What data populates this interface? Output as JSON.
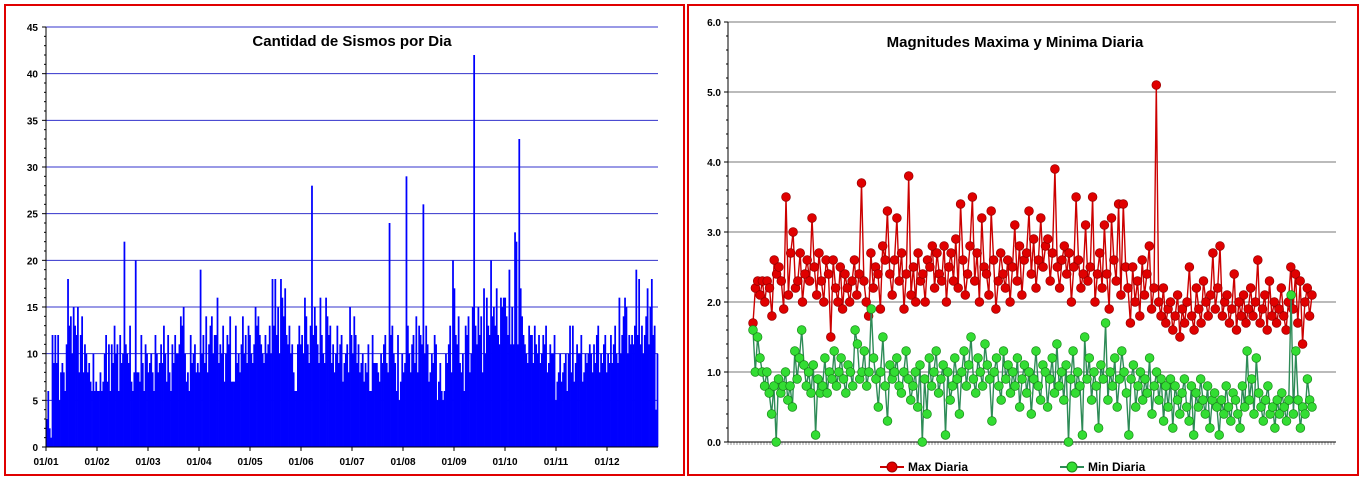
{
  "chart_data": [
    {
      "type": "bar",
      "title": "Cantidad de Sismos por Dia",
      "xlabel": "",
      "ylabel": "",
      "ylim": [
        0,
        45
      ],
      "yticks": [
        0,
        5,
        10,
        15,
        20,
        25,
        30,
        35,
        40,
        45
      ],
      "xtick_labels": [
        "01/01",
        "01/02",
        "01/03",
        "01/04",
        "01/05",
        "01/06",
        "01/07",
        "01/08",
        "01/09",
        "01/10",
        "01/11",
        "01/12"
      ],
      "grid": true,
      "bar_color": "#0000ff",
      "grid_color": "#3333cc",
      "peak_values": [
        {
          "x": "≈14 Sep",
          "y": 42
        },
        {
          "x": "≈5 Oct",
          "y": 33
        },
        {
          "x": "≈12 Aug",
          "y": 29
        },
        {
          "x": "≈22 Jun",
          "y": 28
        },
        {
          "x": "≈20 Aug",
          "y": 26
        },
        {
          "x": "≈27 Jul",
          "y": 24
        },
        {
          "x": "≈3 Oct",
          "y": 23
        },
        {
          "x": "≈12 Feb",
          "y": 22
        },
        {
          "x": "≈19 Feb",
          "y": 20
        },
        {
          "x": "≈2 Sep",
          "y": 20
        }
      ],
      "values": [
        3,
        6,
        2,
        1,
        12,
        9,
        12,
        9,
        12,
        5,
        8,
        9,
        8,
        6,
        11,
        18,
        13,
        14,
        10,
        15,
        13,
        12,
        15,
        8,
        12,
        14,
        8,
        11,
        10,
        8,
        9,
        7,
        6,
        10,
        6,
        7,
        6,
        6,
        8,
        6,
        7,
        10,
        12,
        7,
        11,
        6,
        11,
        9,
        13,
        10,
        11,
        6,
        12,
        9,
        10,
        22,
        11,
        10,
        9,
        13,
        7,
        6,
        8,
        20,
        8,
        8,
        7,
        12,
        9,
        6,
        11,
        10,
        8,
        9,
        10,
        8,
        6,
        12,
        10,
        8,
        9,
        11,
        9,
        13,
        10,
        7,
        12,
        8,
        6,
        11,
        9,
        12,
        10,
        10,
        11,
        14,
        13,
        15,
        10,
        7,
        8,
        6,
        12,
        9,
        10,
        11,
        8,
        9,
        8,
        19,
        10,
        12,
        9,
        14,
        8,
        11,
        13,
        14,
        10,
        12,
        12,
        16,
        9,
        11,
        10,
        13,
        7,
        10,
        12,
        11,
        14,
        7,
        7,
        7,
        13,
        9,
        10,
        8,
        11,
        14,
        10,
        12,
        9,
        13,
        12,
        10,
        9,
        11,
        15,
        13,
        14,
        12,
        11,
        10,
        9,
        12,
        10,
        11,
        13,
        10,
        18,
        13,
        18,
        12,
        15,
        10,
        18,
        16,
        14,
        17,
        12,
        11,
        13,
        10,
        11,
        8,
        6,
        6,
        11,
        13,
        11,
        12,
        10,
        16,
        14,
        11,
        9,
        13,
        28,
        12,
        15,
        13,
        11,
        9,
        16,
        12,
        10,
        9,
        16,
        14,
        12,
        13,
        9,
        11,
        8,
        10,
        13,
        9,
        11,
        12,
        7,
        9,
        10,
        11,
        8,
        15,
        12,
        10,
        14,
        12,
        9,
        11,
        8,
        9,
        10,
        7,
        9,
        8,
        11,
        6,
        6,
        12,
        9,
        9,
        9,
        8,
        7,
        10,
        9,
        11,
        12,
        9,
        8,
        24,
        12,
        13,
        10,
        9,
        6,
        12,
        5,
        7,
        10,
        8,
        9,
        29,
        13,
        10,
        8,
        11,
        12,
        9,
        14,
        8,
        13,
        12,
        11,
        26,
        10,
        13,
        11,
        7,
        8,
        10,
        9,
        12,
        11,
        5,
        7,
        9,
        6,
        5,
        6,
        10,
        9,
        11,
        13,
        8,
        20,
        17,
        12,
        11,
        14,
        9,
        8,
        10,
        6,
        13,
        12,
        14,
        8,
        10,
        15,
        42,
        13,
        11,
        15,
        12,
        14,
        8,
        17,
        10,
        16,
        13,
        12,
        20,
        14,
        15,
        13,
        17,
        12,
        11,
        16,
        15,
        16,
        16,
        14,
        12,
        19,
        11,
        15,
        11,
        23,
        22,
        11,
        33,
        17,
        14,
        12,
        11,
        10,
        9,
        13,
        12,
        12,
        9,
        13,
        11,
        10,
        12,
        9,
        10,
        12,
        11,
        13,
        8,
        9,
        11,
        10,
        10,
        12,
        5,
        7,
        8,
        10,
        7,
        8,
        9,
        10,
        6,
        10,
        13,
        8,
        13,
        7,
        9,
        11,
        10,
        10,
        12,
        7,
        8,
        10,
        9,
        10,
        11,
        10,
        8,
        11,
        9,
        12,
        13,
        8,
        10,
        9,
        11,
        12,
        8,
        10,
        9,
        12,
        9,
        11,
        13,
        10,
        9,
        16,
        10,
        12,
        14,
        16,
        15,
        10,
        12,
        11,
        12,
        11,
        13,
        19,
        12,
        18,
        11,
        13,
        10,
        12,
        14,
        17,
        11,
        15,
        18,
        12,
        13,
        4,
        10
      ]
    },
    {
      "type": "line",
      "title": "Magnitudes Maxima y Minima Diaria",
      "xlabel": "",
      "ylabel": "",
      "ylim": [
        0,
        6
      ],
      "yticks": [
        "0.0",
        "1.0",
        "2.0",
        "3.0",
        "4.0",
        "5.0",
        "6.0"
      ],
      "grid": true,
      "legend_position": "bottom",
      "series": [
        {
          "name": "Max Diaria",
          "line_color": "#cc0000",
          "marker_color": "#e00000",
          "peak_value": 5.1,
          "values": [
            1.7,
            2.2,
            2.3,
            2.1,
            2.3,
            2.0,
            2.3,
            2.2,
            1.8,
            2.6,
            2.4,
            2.5,
            2.3,
            1.9,
            3.5,
            2.1,
            2.7,
            3.0,
            2.2,
            2.3,
            2.7,
            2.0,
            2.4,
            2.6,
            2.3,
            3.2,
            2.5,
            2.1,
            2.7,
            2.3,
            2.0,
            2.6,
            2.4,
            1.5,
            2.6,
            2.2,
            2.0,
            2.5,
            1.9,
            2.4,
            2.2,
            2.0,
            2.3,
            2.6,
            2.1,
            2.4,
            3.7,
            2.3,
            2.0,
            1.8,
            2.7,
            2.2,
            2.5,
            2.4,
            1.9,
            2.8,
            2.6,
            3.3,
            2.4,
            2.1,
            2.6,
            3.2,
            2.3,
            2.7,
            1.9,
            2.4,
            3.8,
            2.1,
            2.5,
            2.0,
            2.7,
            2.3,
            2.4,
            2.0,
            2.6,
            2.5,
            2.8,
            2.2,
            2.7,
            2.4,
            2.3,
            2.8,
            2.0,
            2.5,
            2.7,
            2.3,
            2.9,
            2.2,
            3.4,
            2.6,
            2.1,
            2.4,
            2.8,
            3.5,
            2.3,
            2.7,
            2.0,
            3.2,
            2.5,
            2.4,
            2.1,
            3.3,
            2.6,
            1.9,
            2.3,
            2.7,
            2.4,
            2.2,
            2.6,
            2.0,
            2.5,
            3.1,
            2.3,
            2.8,
            2.1,
            2.6,
            2.7,
            3.3,
            2.4,
            2.9,
            2.2,
            2.6,
            3.2,
            2.5,
            2.8,
            2.9,
            2.3,
            2.7,
            3.9,
            2.5,
            2.2,
            2.6,
            2.8,
            2.4,
            2.7,
            2.0,
            2.5,
            3.5,
            2.6,
            2.2,
            2.4,
            3.1,
            2.3,
            2.5,
            3.5,
            2.0,
            2.4,
            2.7,
            2.2,
            3.1,
            2.4,
            1.9,
            3.2,
            2.6,
            2.3,
            3.4,
            2.1,
            3.4,
            2.5,
            2.2,
            1.7,
            2.5,
            2.0,
            2.3,
            1.8,
            2.6,
            2.1,
            2.4,
            2.8,
            1.9,
            2.2,
            5.1,
            2.0,
            1.8,
            2.2,
            1.7,
            1.9,
            2.0,
            1.6,
            1.8,
            2.1,
            1.5,
            1.9,
            1.7,
            2.0,
            2.5,
            1.8,
            1.6,
            2.2,
            1.9,
            1.7,
            2.3,
            2.0,
            1.8,
            2.1,
            2.7,
            1.9,
            2.2,
            2.8,
            1.8,
            2.0,
            2.1,
            1.7,
            1.9,
            2.4,
            1.6,
            2.0,
            1.8,
            2.1,
            1.7,
            1.9,
            2.2,
            1.8,
            2.0,
            2.6,
            1.7,
            1.9,
            2.1,
            1.6,
            2.3,
            1.8,
            2.0,
            1.7,
            1.9,
            2.2,
            1.8,
            1.6,
            2.0,
            2.5,
            1.9,
            2.4,
            1.7,
            2.3,
            1.4,
            2.0,
            2.2,
            1.8,
            2.1
          ]
        },
        {
          "name": "Min Diaria",
          "line_color": "#2e8b57",
          "marker_color": "#33dd33",
          "peak_value": 2.1,
          "values": [
            1.6,
            1.0,
            1.5,
            1.2,
            1.0,
            0.8,
            1.0,
            0.7,
            0.4,
            0.8,
            0.0,
            0.9,
            0.7,
            0.8,
            1.0,
            0.6,
            0.8,
            0.5,
            1.3,
            0.9,
            1.2,
            1.6,
            1.1,
            0.8,
            1.0,
            0.7,
            1.1,
            0.1,
            0.9,
            0.7,
            0.8,
            1.2,
            0.7,
            1.0,
            0.9,
            1.3,
            0.8,
            1.0,
            1.2,
            0.9,
            0.7,
            1.1,
            1.0,
            0.8,
            1.6,
            1.4,
            0.9,
            1.0,
            1.3,
            0.8,
            1.0,
            1.9,
            1.2,
            0.9,
            0.5,
            1.0,
            1.5,
            0.8,
            0.3,
            1.1,
            0.9,
            1.0,
            1.2,
            0.8,
            0.7,
            1.0,
            1.3,
            0.9,
            0.6,
            0.8,
            1.0,
            0.5,
            1.1,
            0.0,
            0.9,
            0.4,
            1.2,
            0.8,
            1.0,
            1.3,
            0.7,
            0.9,
            1.1,
            0.1,
            1.0,
            0.6,
            0.8,
            1.2,
            0.9,
            0.4,
            1.0,
            1.3,
            0.8,
            1.1,
            1.5,
            0.9,
            0.7,
            1.2,
            1.0,
            0.8,
            1.4,
            1.1,
            0.9,
            0.3,
            1.0,
            1.2,
            0.8,
            0.6,
            1.3,
            0.9,
            1.1,
            0.7,
            1.0,
            0.8,
            1.2,
            0.5,
            0.9,
            1.1,
            0.7,
            1.0,
            0.4,
            0.9,
            1.3,
            0.8,
            0.6,
            1.1,
            1.0,
            0.5,
            0.9,
            1.2,
            0.7,
            1.4,
            0.8,
            1.0,
            0.6,
            1.1,
            0.0,
            0.9,
            1.3,
            0.7,
            1.0,
            0.8,
            0.1,
            1.5,
            0.9,
            1.2,
            0.6,
            1.0,
            0.8,
            0.2,
            1.1,
            0.9,
            1.7,
            0.6,
            1.0,
            0.8,
            1.2,
            0.5,
            0.9,
            1.3,
            1.0,
            0.7,
            0.1,
            0.9,
            1.1,
            0.5,
            0.8,
            1.0,
            0.6,
            0.9,
            0.7,
            1.2,
            0.4,
            0.8,
            1.0,
            0.6,
            0.9,
            0.3,
            0.8,
            0.5,
            0.9,
            0.2,
            0.8,
            0.6,
            0.4,
            0.7,
            0.9,
            0.5,
            0.3,
            0.8,
            0.1,
            0.7,
            0.5,
            0.9,
            0.6,
            0.4,
            0.8,
            0.2,
            0.6,
            0.7,
            0.5,
            0.1,
            0.6,
            0.4,
            0.8,
            0.5,
            0.3,
            0.7,
            0.6,
            0.4,
            0.2,
            0.8,
            0.5,
            1.3,
            0.6,
            0.9,
            0.4,
            1.2,
            0.7,
            0.5,
            0.3,
            0.6,
            0.8,
            0.4,
            0.5,
            0.2,
            0.6,
            0.4,
            0.7,
            0.5,
            0.3,
            0.6,
            2.1,
            0.4,
            1.3,
            0.6,
            0.2,
            0.5,
            0.4,
            0.9,
            0.6,
            0.5
          ]
        }
      ]
    }
  ]
}
